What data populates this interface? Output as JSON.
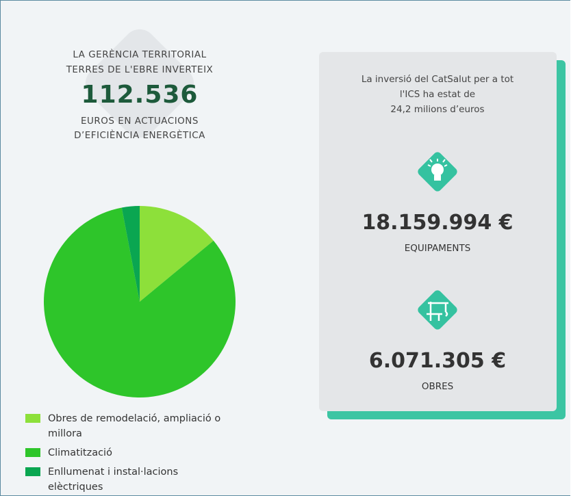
{
  "headline": {
    "line1": "LA GERÈNCIA TERRITORIAL",
    "line2": "TERRES DE L'EBRE INVERTEIX",
    "amount": "112.536",
    "line3": "EUROS EN ACTUACIONS",
    "line4": "D’EFICIÈNCIA ENERGÈTICA"
  },
  "card": {
    "intro": [
      "La inversió del CatSalut per a tot",
      "l'ICS ha estat de",
      "24,2 milions d’euros"
    ],
    "items": [
      {
        "amount": "18.159.994 €",
        "label": "EQUIPAMENTS"
      },
      {
        "amount": "6.071.305 €",
        "label": "OBRES"
      }
    ]
  },
  "chart_data": {
    "type": "pie",
    "categories": [
      "Obres de remodelació, ampliació o millora",
      "Climatització",
      "Enllumenat i instal·lacions elèctriques"
    ],
    "values": [
      14,
      83,
      3
    ],
    "colors": [
      "#8de03a",
      "#2ec52a",
      "#0aa651"
    ]
  }
}
